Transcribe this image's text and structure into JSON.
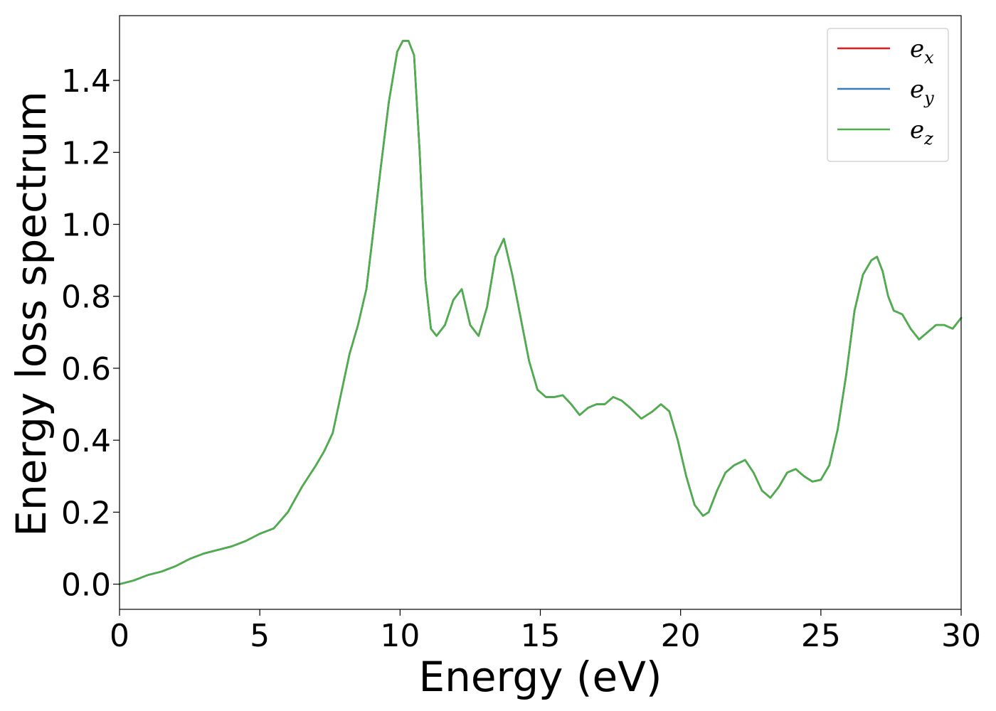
{
  "chart_data": {
    "type": "line",
    "title": "",
    "xlabel": "Energy (eV)",
    "ylabel": "Energy loss spectrum",
    "xlim": [
      0,
      30
    ],
    "ylim": [
      -0.07,
      1.58
    ],
    "xticks": [
      0,
      5,
      10,
      15,
      20,
      25,
      30
    ],
    "xtick_labels": [
      "0",
      "5",
      "10",
      "15",
      "20",
      "25",
      "30"
    ],
    "yticks": [
      0.0,
      0.2,
      0.4,
      0.6,
      0.8,
      1.0,
      1.2,
      1.4
    ],
    "ytick_labels": [
      "0.0",
      "0.2",
      "0.4",
      "0.6",
      "0.8",
      "1.0",
      "1.2",
      "1.4"
    ],
    "grid": false,
    "legend_position": "top-right",
    "x": [
      0,
      0.5,
      1.0,
      1.5,
      2.0,
      2.5,
      3.0,
      3.5,
      4.0,
      4.5,
      5.0,
      5.5,
      6.0,
      6.5,
      7.0,
      7.3,
      7.6,
      7.9,
      8.2,
      8.5,
      8.8,
      9.0,
      9.3,
      9.6,
      9.9,
      10.1,
      10.3,
      10.5,
      10.7,
      10.9,
      11.1,
      11.3,
      11.6,
      11.9,
      12.2,
      12.5,
      12.8,
      13.1,
      13.4,
      13.7,
      14.0,
      14.3,
      14.6,
      14.9,
      15.2,
      15.5,
      15.8,
      16.1,
      16.4,
      16.7,
      17.0,
      17.3,
      17.6,
      17.9,
      18.2,
      18.6,
      19.0,
      19.3,
      19.6,
      19.9,
      20.2,
      20.5,
      20.8,
      21.0,
      21.3,
      21.6,
      21.9,
      22.3,
      22.6,
      22.9,
      23.2,
      23.5,
      23.8,
      24.1,
      24.4,
      24.7,
      25.0,
      25.3,
      25.6,
      25.9,
      26.2,
      26.5,
      26.8,
      27.0,
      27.2,
      27.4,
      27.6,
      27.9,
      28.2,
      28.5,
      28.8,
      29.1,
      29.4,
      29.7,
      30.0
    ],
    "series": [
      {
        "name": "e_x",
        "color": "#e41a1c",
        "values": [
          0.0,
          0.01,
          0.025,
          0.035,
          0.05,
          0.07,
          0.085,
          0.095,
          0.105,
          0.12,
          0.14,
          0.155,
          0.2,
          0.27,
          0.33,
          0.37,
          0.42,
          0.53,
          0.64,
          0.72,
          0.82,
          0.95,
          1.15,
          1.34,
          1.48,
          1.51,
          1.51,
          1.47,
          1.2,
          0.85,
          0.71,
          0.69,
          0.72,
          0.79,
          0.82,
          0.72,
          0.69,
          0.77,
          0.91,
          0.96,
          0.86,
          0.74,
          0.62,
          0.54,
          0.52,
          0.52,
          0.525,
          0.5,
          0.47,
          0.49,
          0.5,
          0.5,
          0.52,
          0.51,
          0.49,
          0.46,
          0.48,
          0.5,
          0.48,
          0.4,
          0.3,
          0.22,
          0.19,
          0.2,
          0.26,
          0.31,
          0.33,
          0.345,
          0.31,
          0.26,
          0.24,
          0.27,
          0.31,
          0.32,
          0.3,
          0.285,
          0.29,
          0.33,
          0.43,
          0.58,
          0.76,
          0.86,
          0.9,
          0.91,
          0.87,
          0.8,
          0.76,
          0.75,
          0.71,
          0.68,
          0.7,
          0.72,
          0.72,
          0.71,
          0.74
        ]
      },
      {
        "name": "e_y",
        "color": "#377eb8",
        "values": [
          0.0,
          0.01,
          0.025,
          0.035,
          0.05,
          0.07,
          0.085,
          0.095,
          0.105,
          0.12,
          0.14,
          0.155,
          0.2,
          0.27,
          0.33,
          0.37,
          0.42,
          0.53,
          0.64,
          0.72,
          0.82,
          0.95,
          1.15,
          1.34,
          1.48,
          1.51,
          1.51,
          1.47,
          1.2,
          0.85,
          0.71,
          0.69,
          0.72,
          0.79,
          0.82,
          0.72,
          0.69,
          0.77,
          0.91,
          0.96,
          0.86,
          0.74,
          0.62,
          0.54,
          0.52,
          0.52,
          0.525,
          0.5,
          0.47,
          0.49,
          0.5,
          0.5,
          0.52,
          0.51,
          0.49,
          0.46,
          0.48,
          0.5,
          0.48,
          0.4,
          0.3,
          0.22,
          0.19,
          0.2,
          0.26,
          0.31,
          0.33,
          0.345,
          0.31,
          0.26,
          0.24,
          0.27,
          0.31,
          0.32,
          0.3,
          0.285,
          0.29,
          0.33,
          0.43,
          0.58,
          0.76,
          0.86,
          0.9,
          0.91,
          0.87,
          0.8,
          0.76,
          0.75,
          0.71,
          0.68,
          0.7,
          0.72,
          0.72,
          0.71,
          0.74
        ]
      },
      {
        "name": "e_z",
        "color": "#4daf4a",
        "values": [
          0.0,
          0.01,
          0.025,
          0.035,
          0.05,
          0.07,
          0.085,
          0.095,
          0.105,
          0.12,
          0.14,
          0.155,
          0.2,
          0.27,
          0.33,
          0.37,
          0.42,
          0.53,
          0.64,
          0.72,
          0.82,
          0.95,
          1.15,
          1.34,
          1.48,
          1.51,
          1.51,
          1.47,
          1.2,
          0.85,
          0.71,
          0.69,
          0.72,
          0.79,
          0.82,
          0.72,
          0.69,
          0.77,
          0.91,
          0.96,
          0.86,
          0.74,
          0.62,
          0.54,
          0.52,
          0.52,
          0.525,
          0.5,
          0.47,
          0.49,
          0.5,
          0.5,
          0.52,
          0.51,
          0.49,
          0.46,
          0.48,
          0.5,
          0.48,
          0.4,
          0.3,
          0.22,
          0.19,
          0.2,
          0.26,
          0.31,
          0.33,
          0.345,
          0.31,
          0.26,
          0.24,
          0.27,
          0.31,
          0.32,
          0.3,
          0.285,
          0.29,
          0.33,
          0.43,
          0.58,
          0.76,
          0.86,
          0.9,
          0.91,
          0.87,
          0.8,
          0.76,
          0.75,
          0.71,
          0.68,
          0.7,
          0.72,
          0.72,
          0.71,
          0.74
        ]
      }
    ],
    "legend": [
      {
        "base": "e",
        "sub": "x",
        "color": "#e41a1c"
      },
      {
        "base": "e",
        "sub": "y",
        "color": "#377eb8"
      },
      {
        "base": "e",
        "sub": "z",
        "color": "#4daf4a"
      }
    ]
  }
}
